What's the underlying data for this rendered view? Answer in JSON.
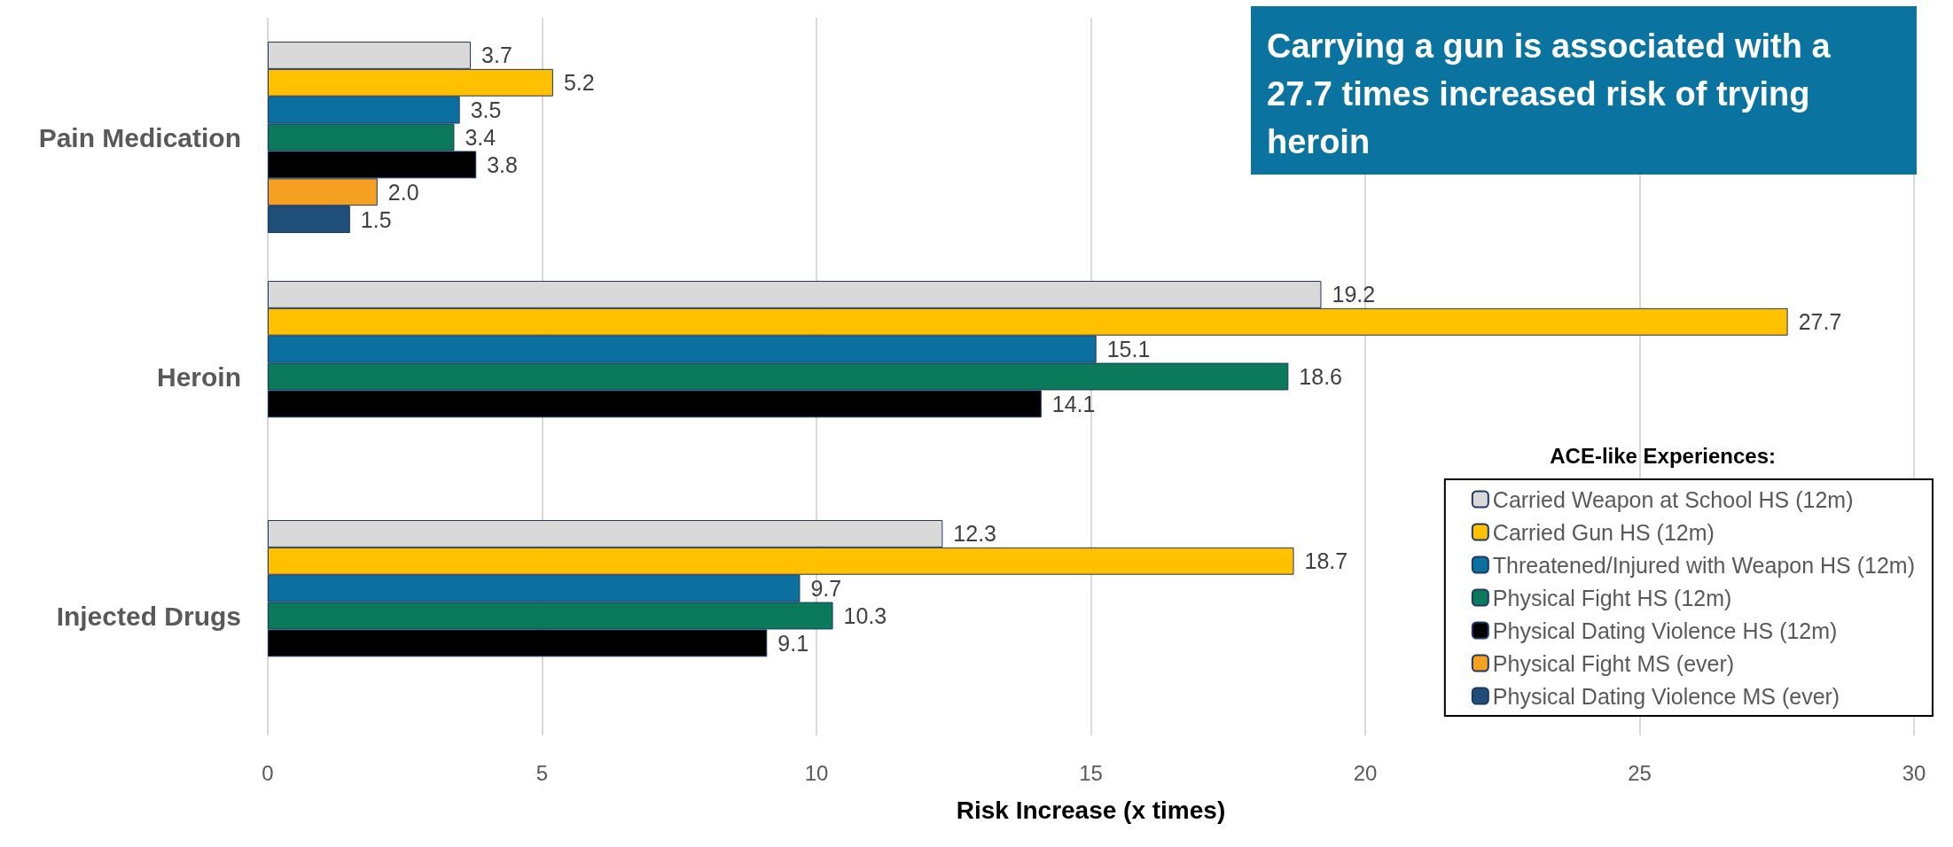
{
  "chart_data": {
    "type": "bar",
    "orientation": "horizontal",
    "categories": [
      "Pain Medication",
      "Heroin",
      "Injected Drugs"
    ],
    "series": [
      {
        "name": "Carried Weapon at School HS (12m)",
        "color": "#d9d9d9",
        "values": [
          3.7,
          19.2,
          12.3
        ],
        "value_labels": [
          "3.7",
          "19.2",
          "12.3"
        ]
      },
      {
        "name": "Carried Gun HS (12m)",
        "color": "#ffc000",
        "values": [
          5.2,
          27.7,
          18.7
        ],
        "value_labels": [
          "5.2",
          "27.7",
          "18.7"
        ]
      },
      {
        "name": "Threatened/Injured with Weapon HS (12m)",
        "color": "#0b6fa0",
        "values": [
          3.5,
          15.1,
          9.7
        ],
        "value_labels": [
          "3.5",
          "15.1",
          "9.7"
        ]
      },
      {
        "name": "Physical Fight HS (12m)",
        "color": "#0b7a5a",
        "values": [
          3.4,
          18.6,
          10.3
        ],
        "value_labels": [
          "3.4",
          "18.6",
          "10.3"
        ]
      },
      {
        "name": "Physical Dating Violence HS (12m)",
        "color": "#000000",
        "values": [
          3.8,
          14.1,
          9.1
        ],
        "value_labels": [
          "3.8",
          "14.1",
          "9.1"
        ]
      },
      {
        "name": "Physical Fight MS (ever)",
        "color": "#f5a020",
        "values": [
          2.0,
          null,
          null
        ],
        "value_labels": [
          "2.0",
          null,
          null
        ]
      },
      {
        "name": "Physical Dating Violence MS (ever)",
        "color": "#1f4e79",
        "values": [
          1.5,
          null,
          null
        ],
        "value_labels": [
          "1.5",
          null,
          null
        ]
      }
    ],
    "xlabel": "Risk Increase (x times)",
    "xlim": [
      0,
      30
    ],
    "xticks": [
      0,
      5,
      10,
      15,
      20,
      25,
      30
    ],
    "grid": "x",
    "legend": "bottom right",
    "legend_title": "ACE-like Experiences:",
    "annotations": [
      "Carrying a gun is associated with a 27.7 times increased risk of trying heroin"
    ]
  }
}
